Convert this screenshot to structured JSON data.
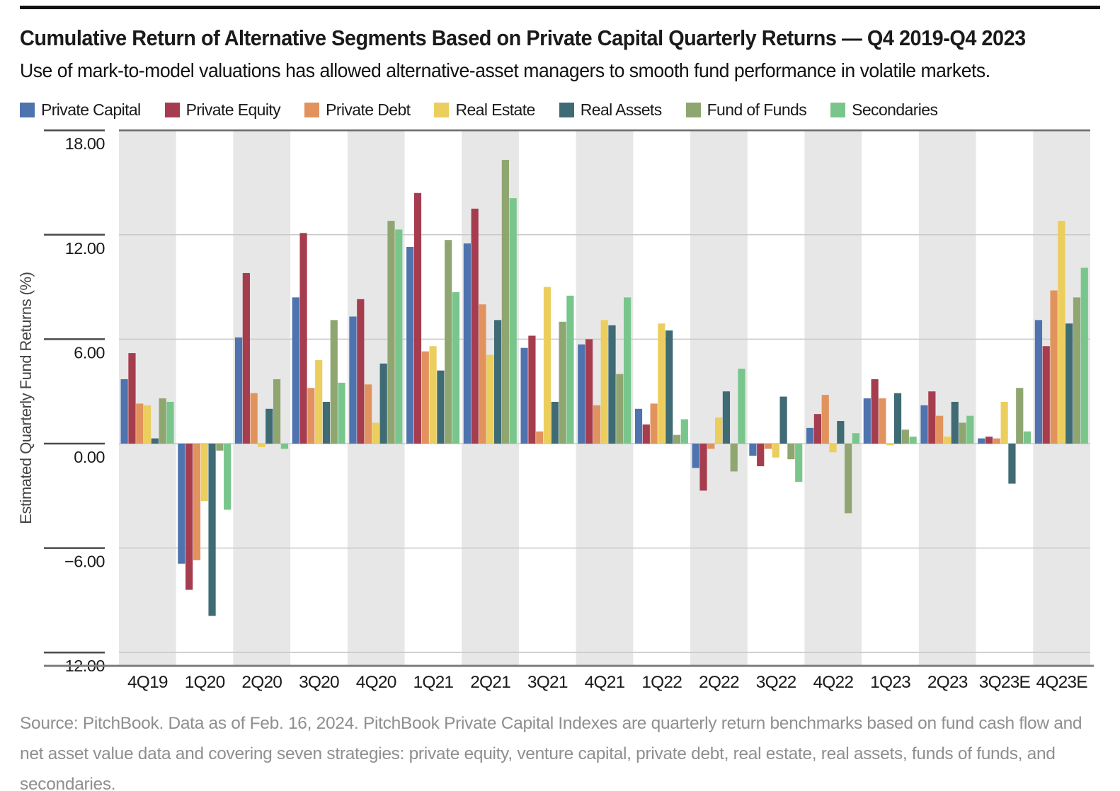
{
  "page": {
    "title": "Cumulative Return of Alternative Segments Based on Private Capital Quarterly Returns — Q4 2019-Q4 2023",
    "subtitle": "Use of mark-to-model valuations has allowed alternative-asset managers to smooth fund performance in volatile markets.",
    "source_note": "Source: PitchBook. Data as of Feb. 16, 2024. PitchBook Private Capital Indexes are quarterly return benchmarks based on fund cash flow and net asset value data and covering seven strategies: private equity, venture capital, private debt, real estate, real assets, funds of funds, and  secondaries."
  },
  "chart_data": {
    "type": "bar",
    "title": "Cumulative Return of Alternative Segments Based on Private Capital Quarterly Returns — Q4 2019-Q4 2023",
    "xlabel": "",
    "ylabel": "Estimated Quarterly Fund Returns (%)",
    "ylim": [
      -12.77,
      18
    ],
    "yticks": [
      18,
      12,
      6,
      0,
      -6,
      -12
    ],
    "ytick_labels": [
      "18.00",
      "12.00",
      "6.00",
      "0.00",
      "−6.00",
      "−12.00"
    ],
    "grid": "horizontal gridlines at each ytick",
    "band_shading": "alternating vertical quarter bands, gray on even category indices",
    "legend_position": "top-left above plot",
    "categories": [
      "4Q19",
      "1Q20",
      "2Q20",
      "3Q20",
      "4Q20",
      "1Q21",
      "2Q21",
      "3Q21",
      "4Q21",
      "1Q22",
      "2Q22",
      "3Q22",
      "4Q22",
      "1Q23",
      "2Q23",
      "3Q23E",
      "4Q23E"
    ],
    "series": [
      {
        "name": "Private Capital",
        "color": "#4e73ae",
        "values": [
          3.7,
          -6.9,
          6.1,
          8.4,
          7.3,
          11.3,
          11.5,
          5.5,
          5.7,
          2.0,
          -1.4,
          -0.7,
          0.9,
          2.6,
          2.2,
          0.3,
          7.1
        ]
      },
      {
        "name": "Private Equity",
        "color": "#a63d4f",
        "values": [
          5.2,
          -8.4,
          9.8,
          12.1,
          8.3,
          14.4,
          13.5,
          6.2,
          6.0,
          1.1,
          -2.7,
          -1.3,
          1.7,
          3.7,
          3.0,
          0.4,
          5.6
        ]
      },
      {
        "name": "Private Debt",
        "color": "#e2935d",
        "values": [
          2.3,
          -6.7,
          2.9,
          3.2,
          3.4,
          5.3,
          8.0,
          0.7,
          2.2,
          2.3,
          -0.3,
          -0.3,
          2.8,
          2.6,
          1.6,
          0.3,
          8.8
        ]
      },
      {
        "name": "Real Estate",
        "color": "#ecce5e",
        "values": [
          2.2,
          -3.3,
          -0.2,
          4.8,
          1.2,
          5.6,
          5.1,
          9.0,
          7.1,
          6.9,
          1.5,
          -0.8,
          -0.5,
          -0.1,
          0.4,
          2.4,
          12.8
        ]
      },
      {
        "name": "Real Assets",
        "color": "#3f6b75",
        "values": [
          0.3,
          -9.9,
          2.0,
          2.4,
          4.6,
          4.2,
          7.1,
          2.4,
          6.8,
          6.5,
          3.0,
          2.7,
          1.3,
          2.9,
          2.4,
          -2.3,
          6.9
        ]
      },
      {
        "name": "Fund of Funds",
        "color": "#8fa671",
        "values": [
          2.6,
          -0.4,
          3.7,
          7.1,
          12.8,
          11.7,
          16.3,
          7.0,
          4.0,
          0.5,
          -1.6,
          -0.9,
          -4.0,
          0.8,
          1.2,
          3.2,
          8.4
        ]
      },
      {
        "name": "Secondaries",
        "color": "#79c68c",
        "values": [
          2.4,
          -3.8,
          -0.3,
          3.5,
          12.3,
          8.7,
          14.1,
          8.5,
          8.4,
          1.4,
          4.3,
          -2.2,
          0.6,
          0.4,
          1.6,
          0.7,
          10.1
        ]
      }
    ],
    "style": {
      "band_gray": "#e7e7e7",
      "gridline_color": "#c9c9c9",
      "axis_line_color": "#7d7d7d",
      "tick_mark_color": "#4a4a4a",
      "tick_label_color": "#1a1a1a",
      "axis_title_color": "#444444"
    }
  }
}
